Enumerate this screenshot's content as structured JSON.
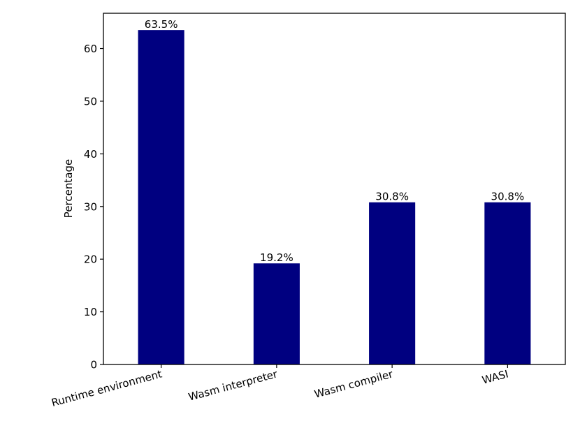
{
  "chart_data": {
    "type": "bar",
    "categories": [
      "Runtime environment",
      "Wasm interpreter",
      "Wasm compiler",
      "WASI"
    ],
    "values": [
      63.5,
      19.2,
      30.8,
      30.8
    ],
    "data_labels": [
      "63.5%",
      "19.2%",
      "30.8%",
      "30.8%"
    ],
    "title": "",
    "xlabel": "",
    "ylabel": "Percentage",
    "ylim": [
      0,
      66.7
    ],
    "yticks": [
      0,
      10,
      20,
      30,
      40,
      50,
      60
    ],
    "grid": false,
    "x_tick_rotation_deg": 15,
    "bar_color": "#000080"
  }
}
